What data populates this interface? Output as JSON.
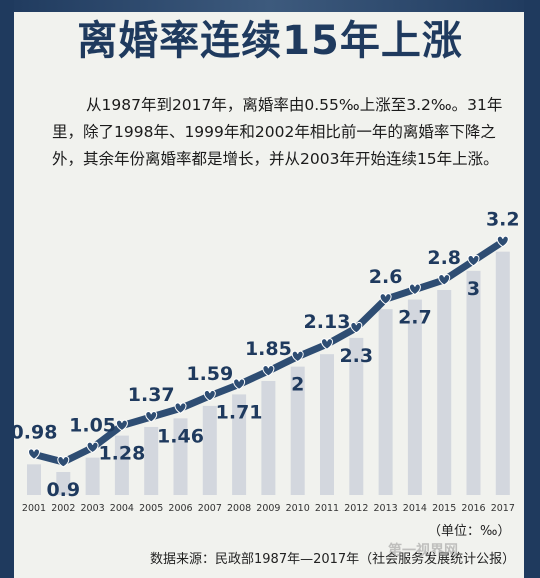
{
  "title": "离婚率连续15年上涨",
  "description": "从1987年到2017年，离婚率由0.55‰上涨至3.2‰。31年里，除了1998年、1999年和2002年相比前一年的离婚率下降之外，其余年份离婚率都是增长，并从2003年开始连续15年上涨。",
  "unit_label": "（单位：‰）",
  "source": "数据来源：民政部1987年—2017年（社会服务发展统计公报）",
  "watermark": "第一视界网",
  "colors": {
    "frame": "#1f3a5e",
    "line": "#2e4d73",
    "bar": "#d3d7de",
    "label": "#1f3a5e"
  },
  "chart_data": {
    "type": "line",
    "categories": [
      "2001",
      "2002",
      "2003",
      "2004",
      "2005",
      "2006",
      "2007",
      "2008",
      "2009",
      "2010",
      "2011",
      "2012",
      "2013",
      "2014",
      "2015",
      "2016",
      "2017"
    ],
    "series": [
      {
        "values": [
          0.98,
          0.9,
          1.05,
          1.28,
          1.37,
          1.46,
          1.59,
          1.71,
          1.85,
          2.0,
          2.13,
          2.3,
          2.6,
          2.7,
          2.8,
          3.0,
          3.2
        ]
      }
    ],
    "data_labels": [
      "0.98",
      "0.9",
      "1.05",
      "1.28",
      "1.37",
      "1.46",
      "1.59",
      "1.71",
      "1.85",
      "2",
      "2.13",
      "2.3",
      "2.6",
      "2.7",
      "2.8",
      "3",
      "3.2"
    ],
    "ylim": [
      0,
      3.5
    ],
    "grid": false,
    "style": "line over light background bars with heart-shaped markers"
  }
}
